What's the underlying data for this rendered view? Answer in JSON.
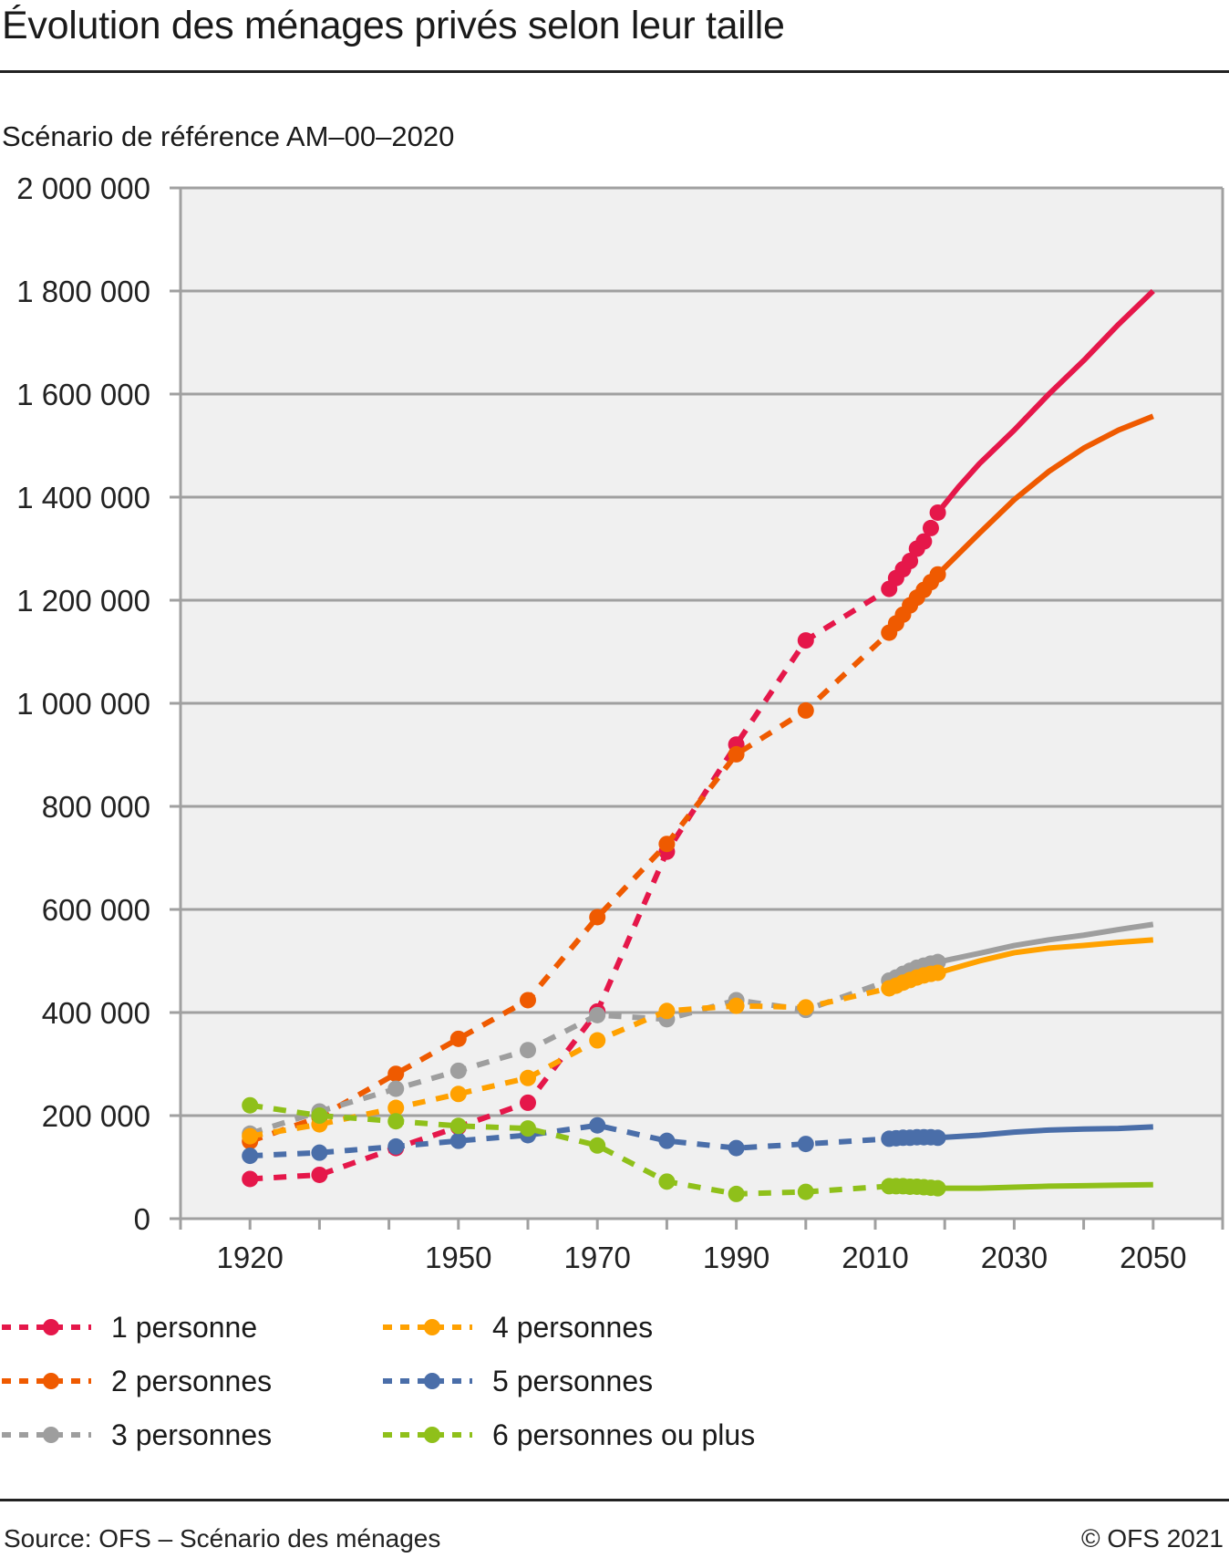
{
  "header": {
    "title": "Évolution des ménages privés selon leur taille",
    "subtitle": "Scénario de référence AM–00–2020"
  },
  "footer": {
    "source": "Source: OFS – Scénario des ménages",
    "copyright": "© OFS 2021"
  },
  "chart_data": {
    "type": "line",
    "title": "Évolution des ménages privés selon leur taille",
    "subtitle": "Scénario de référence AM–00–2020",
    "xlabel": "",
    "ylabel": "",
    "xlim": [
      1910,
      2060
    ],
    "ylim": [
      0,
      2000000
    ],
    "grid": true,
    "legend_position": "bottom",
    "y_ticks": [
      0,
      200000,
      400000,
      600000,
      800000,
      1000000,
      1200000,
      1400000,
      1600000,
      1800000,
      2000000
    ],
    "y_tick_labels": [
      "0",
      "200 000",
      "400 000",
      "600 000",
      "800 000",
      "1 000 000",
      "1 200 000",
      "1 400 000",
      "1 600 000",
      "1 800 000",
      "2 000 000"
    ],
    "x_ticks": [
      1910,
      1920,
      1930,
      1940,
      1950,
      1960,
      1970,
      1980,
      1990,
      2000,
      2010,
      2020,
      2030,
      2040,
      2050,
      2060
    ],
    "x_tick_labels": [
      "1920",
      "1950",
      "1970",
      "1990",
      "2010",
      "2030",
      "2050"
    ],
    "x_tick_label_values": [
      1920,
      1950,
      1970,
      1990,
      2010,
      2030,
      2050
    ],
    "colors": {
      "plot_background": "#f0f0f0",
      "grid": "#a0a0a0"
    },
    "series": [
      {
        "name": "1 personne",
        "color": "#e5174a",
        "observed": {
          "x": [
            1920,
            1930,
            1941,
            1950,
            1960,
            1970,
            1980,
            1990,
            2000,
            2012,
            2013,
            2014,
            2015,
            2016,
            2017,
            2018,
            2019
          ],
          "y": [
            77000,
            85000,
            137000,
            178000,
            225000,
            402000,
            712000,
            920000,
            1122000,
            1222000,
            1243000,
            1260000,
            1276000,
            1300000,
            1314000,
            1340000,
            1370000
          ]
        },
        "projection": {
          "x": [
            2019,
            2022,
            2025,
            2030,
            2035,
            2040,
            2045,
            2050
          ],
          "y": [
            1370000,
            1420000,
            1465000,
            1530000,
            1600000,
            1665000,
            1735000,
            1800000
          ]
        }
      },
      {
        "name": "2 personnes",
        "color": "#ef5a00",
        "observed": {
          "x": [
            1920,
            1930,
            1941,
            1950,
            1960,
            1970,
            1980,
            1990,
            2000,
            2012,
            2013,
            2014,
            2015,
            2016,
            2017,
            2018,
            2019
          ],
          "y": [
            150000,
            197000,
            281000,
            349000,
            424000,
            585000,
            727000,
            901000,
            986000,
            1137000,
            1155000,
            1172000,
            1190000,
            1205000,
            1220000,
            1235000,
            1250000
          ]
        },
        "projection": {
          "x": [
            2019,
            2022,
            2025,
            2030,
            2035,
            2040,
            2045,
            2050
          ],
          "y": [
            1250000,
            1290000,
            1330000,
            1395000,
            1450000,
            1495000,
            1530000,
            1557000
          ]
        }
      },
      {
        "name": "3 personnes",
        "color": "#9e9e9e",
        "observed": {
          "x": [
            1920,
            1930,
            1941,
            1950,
            1960,
            1970,
            1980,
            1990,
            2000,
            2012,
            2013,
            2014,
            2015,
            2016,
            2017,
            2018,
            2019
          ],
          "y": [
            165000,
            208000,
            252000,
            287000,
            327000,
            395000,
            387000,
            424000,
            405000,
            462000,
            468000,
            475000,
            481000,
            487000,
            491000,
            495000,
            498000
          ]
        },
        "projection": {
          "x": [
            2019,
            2025,
            2030,
            2035,
            2040,
            2045,
            2050
          ],
          "y": [
            498000,
            515000,
            530000,
            541000,
            550000,
            561000,
            571000
          ]
        }
      },
      {
        "name": "4 personnes",
        "color": "#ffa100",
        "observed": {
          "x": [
            1920,
            1930,
            1941,
            1950,
            1960,
            1970,
            1980,
            1990,
            2000,
            2012,
            2013,
            2014,
            2015,
            2016,
            2017,
            2018,
            2019
          ],
          "y": [
            160000,
            183000,
            215000,
            242000,
            273000,
            346000,
            403000,
            413000,
            410000,
            447000,
            452000,
            458000,
            463000,
            468000,
            472000,
            475000,
            477000
          ]
        },
        "projection": {
          "x": [
            2019,
            2025,
            2030,
            2035,
            2040,
            2045,
            2050
          ],
          "y": [
            477000,
            500000,
            516000,
            525000,
            530000,
            536000,
            541000
          ]
        }
      },
      {
        "name": "5 personnes",
        "color": "#4a6ea9",
        "observed": {
          "x": [
            1920,
            1930,
            1941,
            1950,
            1960,
            1970,
            1980,
            1990,
            2000,
            2012,
            2013,
            2014,
            2015,
            2016,
            2017,
            2018,
            2019
          ],
          "y": [
            122000,
            128000,
            140000,
            151000,
            162000,
            181000,
            151000,
            137000,
            145000,
            155000,
            156000,
            157000,
            157000,
            158000,
            158000,
            158000,
            157000
          ]
        },
        "projection": {
          "x": [
            2019,
            2025,
            2030,
            2035,
            2040,
            2045,
            2050
          ],
          "y": [
            157000,
            162000,
            168000,
            172000,
            174000,
            175000,
            178000
          ]
        }
      },
      {
        "name": "6 personnes ou plus",
        "color": "#8fc01a",
        "observed": {
          "x": [
            1920,
            1930,
            1941,
            1950,
            1960,
            1970,
            1980,
            1990,
            2000,
            2012,
            2013,
            2014,
            2015,
            2016,
            2017,
            2018,
            2019
          ],
          "y": [
            220000,
            200000,
            189000,
            180000,
            175000,
            142000,
            72000,
            48000,
            52000,
            63000,
            63000,
            63000,
            62000,
            62000,
            61000,
            60000,
            59000
          ]
        },
        "projection": {
          "x": [
            2019,
            2025,
            2030,
            2035,
            2040,
            2045,
            2050
          ],
          "y": [
            59000,
            59000,
            61000,
            63000,
            64000,
            65000,
            66000
          ]
        }
      }
    ]
  }
}
